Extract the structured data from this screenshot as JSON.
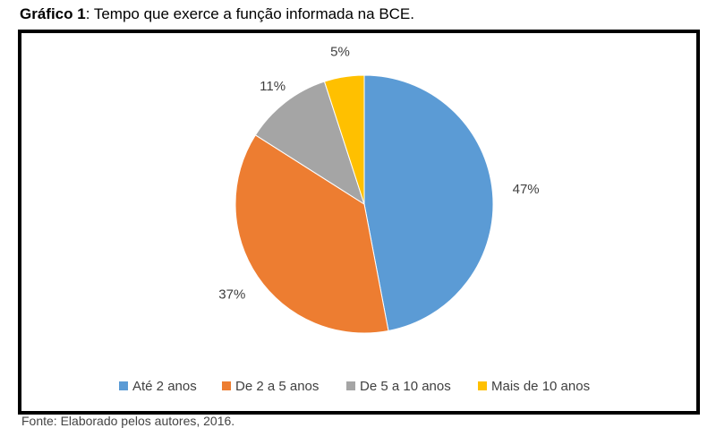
{
  "caption": {
    "label": "Gráfico 1",
    "text": ": Tempo que exerce a função informada na BCE."
  },
  "chart_data": {
    "type": "pie",
    "title": "",
    "categories": [
      "Até 2 anos",
      "De 2 a 5 anos",
      "De 5 a 10 anos",
      "Mais de 10 anos"
    ],
    "values": [
      47,
      37,
      11,
      5
    ],
    "labels": [
      "47%",
      "37%",
      "11%",
      "5%"
    ],
    "colors": [
      "#5B9BD5",
      "#ED7D31",
      "#A5A5A5",
      "#FFC000"
    ],
    "legend": "bottom"
  },
  "footer": {
    "text": "Fonte: Elaborado pelos autores, 2016."
  }
}
